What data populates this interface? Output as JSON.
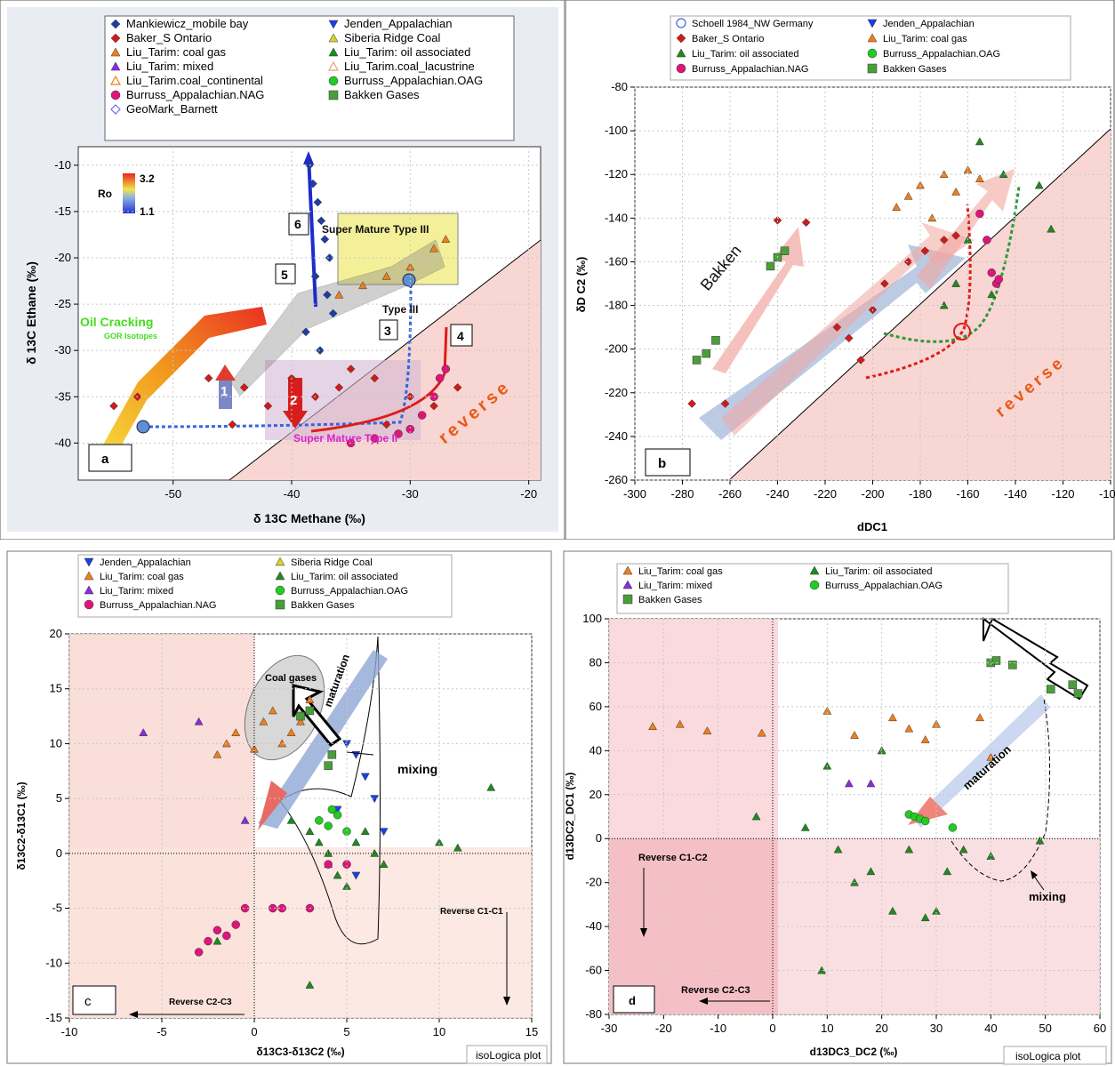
{
  "chart_data": [
    {
      "panel": "a",
      "type": "scatter",
      "xlabel": "δ 13C Methane (‰)",
      "ylabel": "δ 13C Ethane (‰)",
      "xlim": [
        -58,
        -19
      ],
      "ylim": [
        -44,
        -8
      ],
      "xticks": [
        -50,
        -40,
        -30,
        -20
      ],
      "yticks": [
        -10,
        -15,
        -20,
        -25,
        -30,
        -35,
        -40
      ],
      "legend": [
        "Mankiewicz_mobile bay",
        "Baker_S Ontario",
        "Liu_Tarim: coal gas",
        "Liu_Tarim: mixed",
        "Liu_Tarim.coal_continental",
        "Burruss_Appalachian.NAG",
        "GeoMark_Barnett",
        "Jenden_Appalachian",
        "Siberia Ridge Coal",
        "Liu_Tarim: oil associated",
        "Liu_Tarim.coal_lacustrine",
        "Burruss_Appalachian.OAG",
        "Bakken Gases"
      ],
      "colorbar": {
        "title": "Ro",
        "max": "3.2",
        "min": "1.1"
      },
      "annotations": [
        "Oil Cracking",
        "GOR Isotopes",
        "Super Mature Type III",
        "Type III",
        "Super Mature Type II",
        "reverse"
      ],
      "numbers": [
        "1",
        "2",
        "3",
        "4",
        "5",
        "6"
      ],
      "series": [
        {
          "name": "Mankiewicz_mobile bay",
          "x": [
            -38.5,
            -38.2,
            -37.8,
            -37.5,
            -37.2,
            -36.8,
            -38.0,
            -37.0,
            -36.5,
            -38.8,
            -37.6
          ],
          "y": [
            -10,
            -12,
            -14,
            -16,
            -18,
            -20,
            -22,
            -24,
            -26,
            -28,
            -30
          ]
        },
        {
          "name": "Baker_S Ontario",
          "x": [
            -55,
            -53,
            -47,
            -45,
            -44,
            -42,
            -40,
            -38,
            -36,
            -35,
            -33,
            -32,
            -30,
            -28,
            -26
          ],
          "y": [
            -36,
            -35,
            -33,
            -38,
            -34,
            -36,
            -33,
            -35,
            -34,
            -32,
            -33,
            -38,
            -35,
            -36,
            -34
          ]
        },
        {
          "name": "Burruss_Appalachian.NAG",
          "x": [
            -35,
            -33,
            -31,
            -30,
            -29,
            -28,
            -27.5,
            -27
          ],
          "y": [
            -40,
            -39.5,
            -39,
            -38.5,
            -37,
            -35,
            -33,
            -32
          ]
        },
        {
          "name": "Liu_Tarim: coal gas",
          "x": [
            -36,
            -34,
            -32,
            -30,
            -28,
            -27
          ],
          "y": [
            -24,
            -23,
            -22,
            -21,
            -19,
            -18
          ]
        }
      ]
    },
    {
      "panel": "b",
      "type": "scatter",
      "xlabel": "dDC1",
      "ylabel": "δD C2 (‰)",
      "xlim": [
        -300,
        -100
      ],
      "ylim": [
        -260,
        -80
      ],
      "xticks": [
        -300,
        -280,
        -260,
        -240,
        -220,
        -200,
        -180,
        -160,
        -140,
        -120,
        -100
      ],
      "yticks": [
        -80,
        -100,
        -120,
        -140,
        -160,
        -180,
        -200,
        -220,
        -240,
        -260
      ],
      "legend": [
        "Schoell 1984_NW Germany",
        "Baker_S Ontario",
        "Liu_Tarim: oil associated",
        "Burruss_Appalachian.NAG",
        "Jenden_Appalachian",
        "Liu_Tarim: coal gas",
        "Burruss_Appalachian.OAG",
        "Bakken Gases"
      ],
      "annotations": [
        "Bakken",
        "reverse"
      ],
      "series": [
        {
          "name": "Baker_S Ontario",
          "x": [
            -276,
            -262,
            -240,
            -228,
            -215,
            -210,
            -205,
            -200,
            -195,
            -185,
            -178,
            -170,
            -165
          ],
          "y": [
            -225,
            -225,
            -141,
            -142,
            -190,
            -195,
            -205,
            -182,
            -170,
            -160,
            -155,
            -150,
            -148
          ]
        },
        {
          "name": "Liu_Tarim: coal gas",
          "x": [
            -190,
            -185,
            -180,
            -175,
            -170,
            -165,
            -160,
            -155
          ],
          "y": [
            -135,
            -130,
            -125,
            -140,
            -120,
            -128,
            -118,
            -122
          ]
        },
        {
          "name": "Liu_Tarim: oil associated",
          "x": [
            -170,
            -165,
            -160,
            -155,
            -150,
            -145,
            -130,
            -125
          ],
          "y": [
            -180,
            -170,
            -150,
            -105,
            -175,
            -120,
            -125,
            -145
          ]
        },
        {
          "name": "Burruss_Appalachian.NAG",
          "x": [
            -155,
            -152,
            -150,
            -148,
            -147
          ],
          "y": [
            -138,
            -150,
            -165,
            -170,
            -168
          ]
        },
        {
          "name": "Bakken Gases",
          "x": [
            -274,
            -270,
            -266,
            -243,
            -240,
            -237
          ],
          "y": [
            -205,
            -202,
            -196,
            -162,
            -158,
            -155
          ]
        }
      ]
    },
    {
      "panel": "c",
      "type": "scatter",
      "xlabel": "δ13C3-δ13C2 (‰)",
      "ylabel": "δ13C2-δ13C1 (‰)",
      "xlim": [
        -10,
        15
      ],
      "ylim": [
        -15,
        20
      ],
      "xticks": [
        -10,
        -5,
        0,
        5,
        10,
        15
      ],
      "yticks": [
        20,
        15,
        10,
        5,
        0,
        -5,
        -10,
        -15
      ],
      "legend": [
        "Jenden_Appalachian",
        "Liu_Tarim: coal gas",
        "Liu_Tarim: mixed",
        "Burruss_Appalachian.NAG",
        "Siberia Ridge Coal",
        "Liu_Tarim: oil associated",
        "Burruss_Appalachian.OAG",
        "Bakken Gases"
      ],
      "annotations": [
        "Coal gases",
        "maturation",
        "mixing",
        "Reverse C1-C1",
        "Reverse C2-C3"
      ],
      "series": [
        {
          "name": "Liu_Tarim: coal gas",
          "x": [
            -2,
            -1.5,
            -1,
            0,
            0.5,
            1,
            1.5,
            2,
            2.5,
            3
          ],
          "y": [
            9,
            10,
            11,
            9.5,
            12,
            13,
            10,
            11,
            12,
            14
          ]
        },
        {
          "name": "Liu_Tarim: oil associated",
          "x": [
            2,
            3,
            3.5,
            4,
            4.5,
            5,
            5.5,
            6,
            6.5,
            7,
            10,
            11,
            12.8,
            3,
            4,
            -2
          ],
          "y": [
            3,
            2,
            1,
            0,
            -2,
            -3,
            1,
            2,
            0,
            -1,
            1,
            0.5,
            6,
            -12,
            -1,
            -8
          ]
        },
        {
          "name": "Liu_Tarim: mixed",
          "x": [
            -6,
            -3,
            -0.5
          ],
          "y": [
            11,
            12,
            3
          ]
        },
        {
          "name": "Burruss_Appalachian.NAG",
          "x": [
            -3,
            -2.5,
            -2,
            -1.5,
            -1,
            -0.5,
            1,
            1.5,
            3,
            4,
            5
          ],
          "y": [
            -9,
            -8,
            -7,
            -7.5,
            -6.5,
            -5,
            -5,
            -5,
            -5,
            -1,
            -1
          ]
        },
        {
          "name": "Jenden_Appalachian",
          "x": [
            5,
            5.5,
            6,
            6.5,
            7,
            4.5,
            5.5
          ],
          "y": [
            10,
            9,
            7,
            5,
            2,
            4,
            -2
          ]
        },
        {
          "name": "Burruss_Appalachian.OAG",
          "x": [
            3.5,
            4,
            4.2,
            4.5,
            5
          ],
          "y": [
            3,
            2.5,
            4,
            3.5,
            2
          ]
        },
        {
          "name": "Bakken Gases",
          "x": [
            2.5,
            3,
            4,
            4.2
          ],
          "y": [
            12.5,
            13,
            8,
            9
          ]
        }
      ]
    },
    {
      "panel": "d",
      "type": "scatter",
      "xlabel": "d13DC3_DC2 (‰)",
      "ylabel": "d13DC2_DC1 (‰)",
      "xlim": [
        -30,
        60
      ],
      "ylim": [
        -80,
        100
      ],
      "xticks": [
        -30,
        -20,
        -10,
        0,
        10,
        20,
        30,
        40,
        50,
        60
      ],
      "yticks": [
        100,
        80,
        60,
        40,
        20,
        0,
        -20,
        -40,
        -60,
        -80
      ],
      "legend": [
        "Liu_Tarim: coal gas",
        "Liu_Tarim: mixed",
        "Bakken Gases",
        "Liu_Tarim: oil associated",
        "Burruss_Appalachian.OAG"
      ],
      "annotations": [
        "maturation",
        "mixing",
        "Reverse C1-C2",
        "Reverse C2-C3"
      ],
      "series": [
        {
          "name": "Liu_Tarim: coal gas",
          "x": [
            -22,
            -17,
            -12,
            -2,
            10,
            15,
            20,
            22,
            25,
            28,
            30,
            38,
            40
          ],
          "y": [
            51,
            52,
            49,
            48,
            58,
            47,
            40,
            55,
            50,
            45,
            52,
            55,
            37
          ]
        },
        {
          "name": "Liu_Tarim: oil associated",
          "x": [
            -3,
            6,
            10,
            12,
            15,
            18,
            20,
            22,
            25,
            28,
            30,
            32,
            35,
            40,
            49,
            9
          ],
          "y": [
            10,
            5,
            33,
            -5,
            -20,
            -15,
            40,
            -33,
            -5,
            -36,
            -33,
            -15,
            -5,
            -8,
            -1,
            -60
          ]
        },
        {
          "name": "Liu_Tarim: mixed",
          "x": [
            14,
            18
          ],
          "y": [
            25,
            25
          ]
        },
        {
          "name": "Burruss_Appalachian.OAG",
          "x": [
            25,
            26,
            27,
            28,
            33
          ],
          "y": [
            11,
            10,
            9,
            8,
            5
          ]
        },
        {
          "name": "Bakken Gases",
          "x": [
            40,
            41,
            44,
            51,
            55,
            56
          ],
          "y": [
            80,
            81,
            79,
            68,
            70,
            66
          ]
        }
      ]
    }
  ],
  "footer": {
    "watermark_c": "isoLogica plot",
    "watermark_d": "isoLogica plot"
  }
}
